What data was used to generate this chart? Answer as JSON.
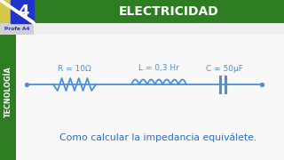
{
  "title": "ELECTRICIDAD",
  "subtitle": "Como calcular la impedancia equiválete.",
  "side_label": "TECNOLOGÍA",
  "label_R": "R = 10Ω",
  "label_L": "L = 0,3 Hr",
  "label_C": "C = 50μF",
  "bg_color": "#f0f0f0",
  "header_bg": "#2e7d22",
  "header_text_color": "#ffffff",
  "side_bg": "#2e7d22",
  "side_text_color": "#ffffff",
  "circuit_color": "#4a90d9",
  "subtitle_color": "#2e6bbf",
  "logo_bg_yellow": "#d4c84a",
  "logo_bg_blue": "#2233cc",
  "logo_bg_green": "#2e7d22",
  "logo_text_color": "#ffffff",
  "profe_text": "Profe A4",
  "profe_text_color": "#2233cc",
  "profe_bg": "#d0d0d0"
}
